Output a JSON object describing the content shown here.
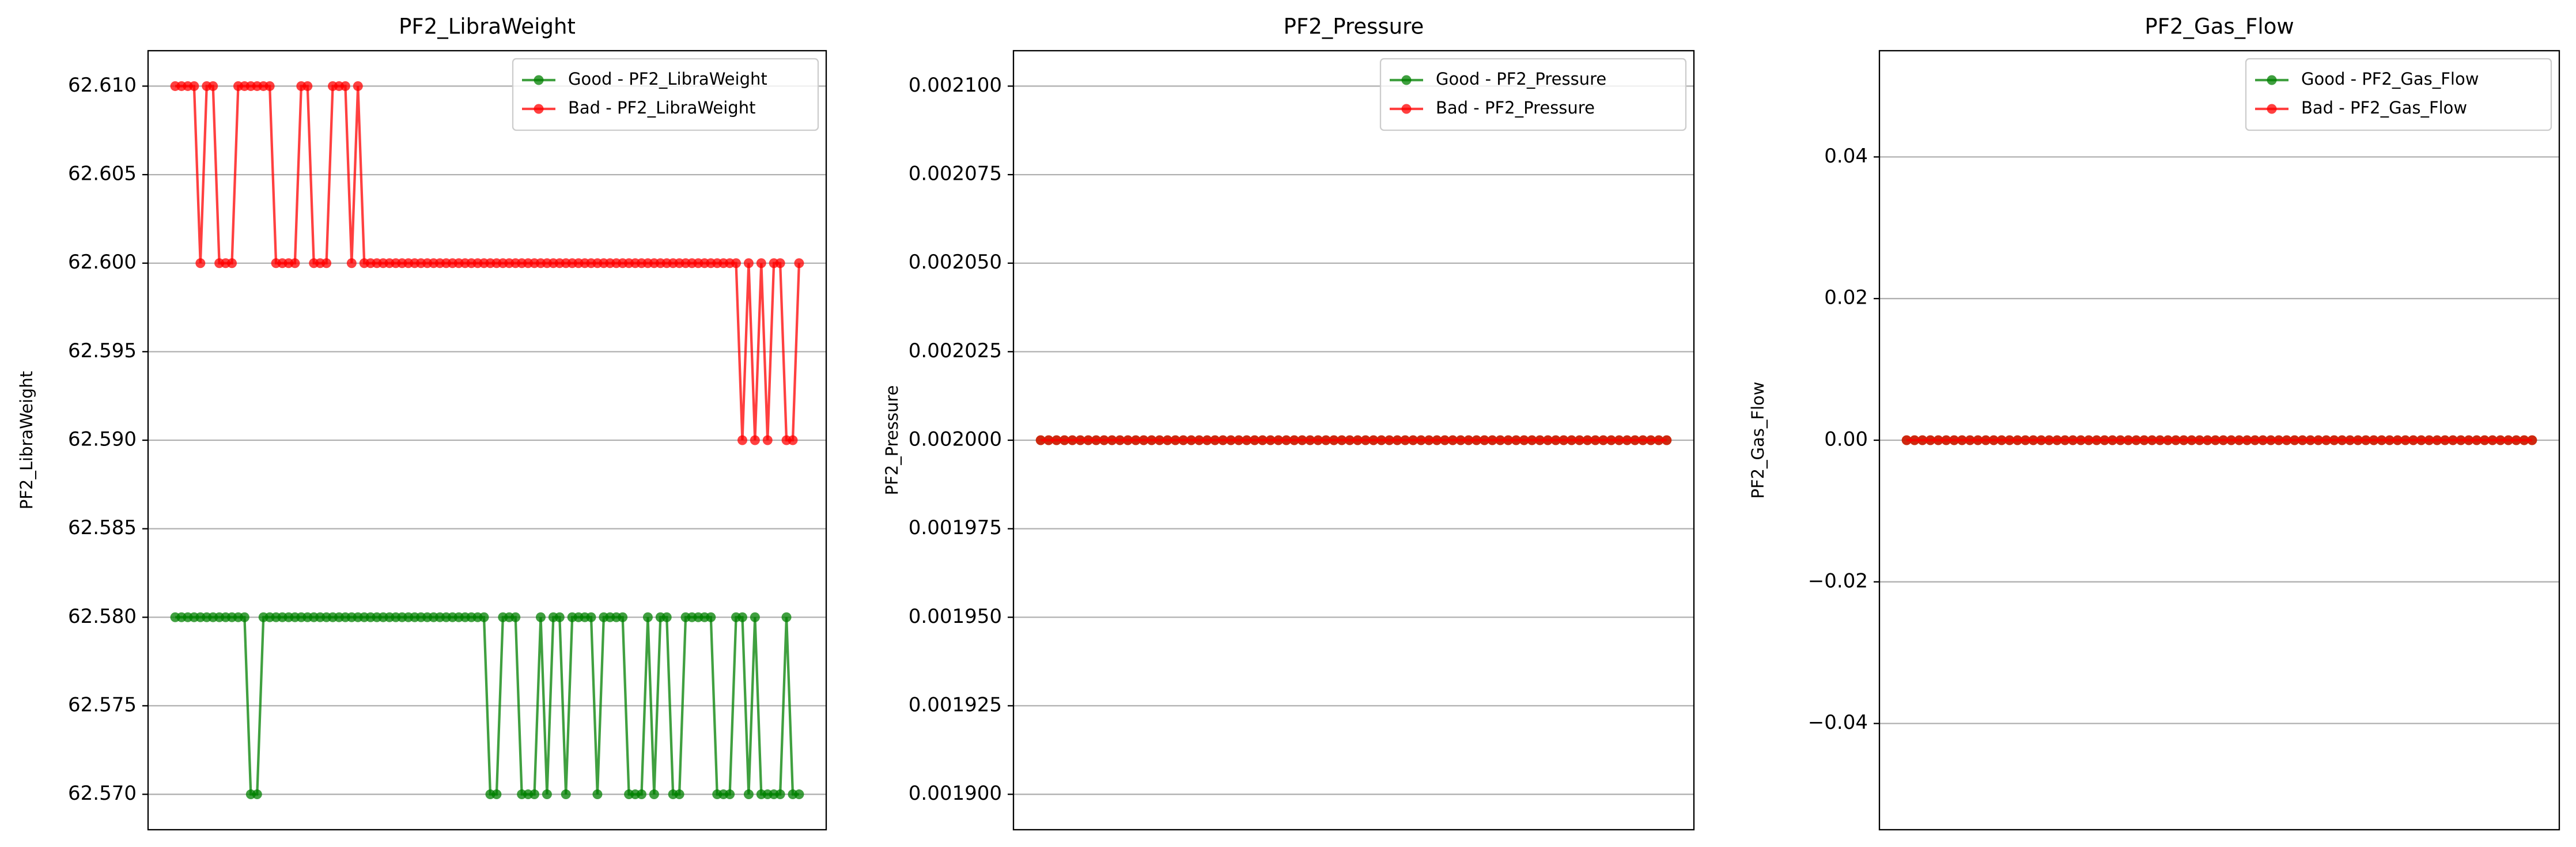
{
  "chart_data": [
    {
      "type": "line",
      "title": "PF2_LibraWeight",
      "ylabel": "PF2_LibraWeight",
      "ylim": [
        62.568,
        62.612
      ],
      "yticks": [
        {
          "value": 62.57,
          "label": "62.570"
        },
        {
          "value": 62.575,
          "label": "62.575"
        },
        {
          "value": 62.58,
          "label": "62.580"
        },
        {
          "value": 62.585,
          "label": "62.585"
        },
        {
          "value": 62.59,
          "label": "62.590"
        },
        {
          "value": 62.595,
          "label": "62.595"
        },
        {
          "value": 62.6,
          "label": "62.600"
        },
        {
          "value": 62.605,
          "label": "62.605"
        },
        {
          "value": 62.61,
          "label": "62.610"
        }
      ],
      "grid": "y",
      "legend": "upper right",
      "series": [
        {
          "name": "Good - PF2_LibraWeight",
          "color": "green",
          "values": [
            62.58,
            62.58,
            62.58,
            62.58,
            62.58,
            62.58,
            62.58,
            62.58,
            62.58,
            62.58,
            62.58,
            62.58,
            62.57,
            62.57,
            62.58,
            62.58,
            62.58,
            62.58,
            62.58,
            62.58,
            62.58,
            62.58,
            62.58,
            62.58,
            62.58,
            62.58,
            62.58,
            62.58,
            62.58,
            62.58,
            62.58,
            62.58,
            62.58,
            62.58,
            62.58,
            62.58,
            62.58,
            62.58,
            62.58,
            62.58,
            62.58,
            62.58,
            62.58,
            62.58,
            62.58,
            62.58,
            62.58,
            62.58,
            62.58,
            62.58,
            62.57,
            62.57,
            62.58,
            62.58,
            62.58,
            62.57,
            62.57,
            62.57,
            62.58,
            62.57,
            62.58,
            62.58,
            62.57,
            62.58,
            62.58,
            62.58,
            62.58,
            62.57,
            62.58,
            62.58,
            62.58,
            62.58,
            62.57,
            62.57,
            62.57,
            62.58,
            62.57,
            62.58,
            62.58,
            62.57,
            62.57,
            62.58,
            62.58,
            62.58,
            62.58,
            62.58,
            62.57,
            62.57,
            62.57,
            62.58,
            62.58,
            62.57,
            62.58,
            62.57,
            62.57,
            62.57,
            62.57,
            62.58,
            62.57,
            62.57
          ]
        },
        {
          "name": "Bad - PF2_LibraWeight",
          "color": "red",
          "values": [
            62.61,
            62.61,
            62.61,
            62.61,
            62.6,
            62.61,
            62.61,
            62.6,
            62.6,
            62.6,
            62.61,
            62.61,
            62.61,
            62.61,
            62.61,
            62.61,
            62.6,
            62.6,
            62.6,
            62.6,
            62.61,
            62.61,
            62.6,
            62.6,
            62.6,
            62.61,
            62.61,
            62.61,
            62.6,
            62.61,
            62.6,
            62.6,
            62.6,
            62.6,
            62.6,
            62.6,
            62.6,
            62.6,
            62.6,
            62.6,
            62.6,
            62.6,
            62.6,
            62.6,
            62.6,
            62.6,
            62.6,
            62.6,
            62.6,
            62.6,
            62.6,
            62.6,
            62.6,
            62.6,
            62.6,
            62.6,
            62.6,
            62.6,
            62.6,
            62.6,
            62.6,
            62.6,
            62.6,
            62.6,
            62.6,
            62.6,
            62.6,
            62.6,
            62.6,
            62.6,
            62.6,
            62.6,
            62.6,
            62.6,
            62.6,
            62.6,
            62.6,
            62.6,
            62.6,
            62.6,
            62.6,
            62.6,
            62.6,
            62.6,
            62.6,
            62.6,
            62.6,
            62.6,
            62.6,
            62.6,
            62.59,
            62.6,
            62.59,
            62.6,
            62.59,
            62.6,
            62.6,
            62.59,
            62.59,
            62.6
          ]
        }
      ]
    },
    {
      "type": "line",
      "title": "PF2_Pressure",
      "ylabel": "PF2_Pressure",
      "ylim": [
        0.00189,
        0.00211
      ],
      "yticks": [
        {
          "value": 0.0019,
          "label": "0.001900"
        },
        {
          "value": 0.001925,
          "label": "0.001925"
        },
        {
          "value": 0.00195,
          "label": "0.001950"
        },
        {
          "value": 0.001975,
          "label": "0.001975"
        },
        {
          "value": 0.002,
          "label": "0.002000"
        },
        {
          "value": 0.002025,
          "label": "0.002025"
        },
        {
          "value": 0.00205,
          "label": "0.002050"
        },
        {
          "value": 0.002075,
          "label": "0.002075"
        },
        {
          "value": 0.0021,
          "label": "0.002100"
        }
      ],
      "grid": "y",
      "legend": "upper right",
      "series": [
        {
          "name": "Good - PF2_Pressure",
          "color": "green",
          "values": [
            0.002,
            0.002,
            0.002,
            0.002,
            0.002,
            0.002,
            0.002,
            0.002,
            0.002,
            0.002,
            0.002,
            0.002,
            0.002,
            0.002,
            0.002,
            0.002,
            0.002,
            0.002,
            0.002,
            0.002,
            0.002,
            0.002,
            0.002,
            0.002,
            0.002,
            0.002,
            0.002,
            0.002,
            0.002,
            0.002,
            0.002,
            0.002,
            0.002,
            0.002,
            0.002,
            0.002,
            0.002,
            0.002,
            0.002,
            0.002,
            0.002,
            0.002,
            0.002,
            0.002,
            0.002,
            0.002,
            0.002,
            0.002,
            0.002,
            0.002,
            0.002,
            0.002,
            0.002,
            0.002,
            0.002,
            0.002,
            0.002,
            0.002,
            0.002,
            0.002,
            0.002,
            0.002,
            0.002,
            0.002,
            0.002,
            0.002,
            0.002,
            0.002,
            0.002,
            0.002,
            0.002,
            0.002,
            0.002,
            0.002,
            0.002,
            0.002,
            0.002,
            0.002,
            0.002,
            0.002
          ]
        },
        {
          "name": "Bad - PF2_Pressure",
          "color": "red",
          "values": [
            0.002,
            0.002,
            0.002,
            0.002,
            0.002,
            0.002,
            0.002,
            0.002,
            0.002,
            0.002,
            0.002,
            0.002,
            0.002,
            0.002,
            0.002,
            0.002,
            0.002,
            0.002,
            0.002,
            0.002,
            0.002,
            0.002,
            0.002,
            0.002,
            0.002,
            0.002,
            0.002,
            0.002,
            0.002,
            0.002,
            0.002,
            0.002,
            0.002,
            0.002,
            0.002,
            0.002,
            0.002,
            0.002,
            0.002,
            0.002,
            0.002,
            0.002,
            0.002,
            0.002,
            0.002,
            0.002,
            0.002,
            0.002,
            0.002,
            0.002,
            0.002,
            0.002,
            0.002,
            0.002,
            0.002,
            0.002,
            0.002,
            0.002,
            0.002,
            0.002,
            0.002,
            0.002,
            0.002,
            0.002,
            0.002,
            0.002,
            0.002,
            0.002,
            0.002,
            0.002,
            0.002,
            0.002,
            0.002,
            0.002,
            0.002,
            0.002,
            0.002,
            0.002,
            0.002,
            0.002
          ]
        }
      ]
    },
    {
      "type": "line",
      "title": "PF2_Gas_Flow",
      "ylabel": "PF2_Gas_Flow",
      "ylim": [
        -0.055,
        0.055
      ],
      "yticks": [
        {
          "value": -0.04,
          "label": "−0.04"
        },
        {
          "value": -0.02,
          "label": "−0.02"
        },
        {
          "value": 0,
          "label": "0.00"
        },
        {
          "value": 0.02,
          "label": "0.02"
        },
        {
          "value": 0.04,
          "label": "0.04"
        }
      ],
      "grid": "y",
      "legend": "upper right",
      "series": [
        {
          "name": "Good - PF2_Gas_Flow",
          "color": "green",
          "values": [
            0,
            0,
            0,
            0,
            0,
            0,
            0,
            0,
            0,
            0,
            0,
            0,
            0,
            0,
            0,
            0,
            0,
            0,
            0,
            0,
            0,
            0,
            0,
            0,
            0,
            0,
            0,
            0,
            0,
            0,
            0,
            0,
            0,
            0,
            0,
            0,
            0,
            0,
            0,
            0,
            0,
            0,
            0,
            0,
            0,
            0,
            0,
            0,
            0,
            0,
            0,
            0,
            0,
            0,
            0,
            0,
            0,
            0,
            0,
            0,
            0,
            0,
            0,
            0,
            0,
            0,
            0,
            0,
            0,
            0,
            0,
            0,
            0,
            0,
            0,
            0,
            0,
            0,
            0,
            0
          ]
        },
        {
          "name": "Bad - PF2_Gas_Flow",
          "color": "red",
          "values": [
            0,
            0,
            0,
            0,
            0,
            0,
            0,
            0,
            0,
            0,
            0,
            0,
            0,
            0,
            0,
            0,
            0,
            0,
            0,
            0,
            0,
            0,
            0,
            0,
            0,
            0,
            0,
            0,
            0,
            0,
            0,
            0,
            0,
            0,
            0,
            0,
            0,
            0,
            0,
            0,
            0,
            0,
            0,
            0,
            0,
            0,
            0,
            0,
            0,
            0,
            0,
            0,
            0,
            0,
            0,
            0,
            0,
            0,
            0,
            0,
            0,
            0,
            0,
            0,
            0,
            0,
            0,
            0,
            0,
            0,
            0,
            0,
            0,
            0,
            0,
            0,
            0,
            0,
            0,
            0
          ]
        }
      ]
    }
  ]
}
